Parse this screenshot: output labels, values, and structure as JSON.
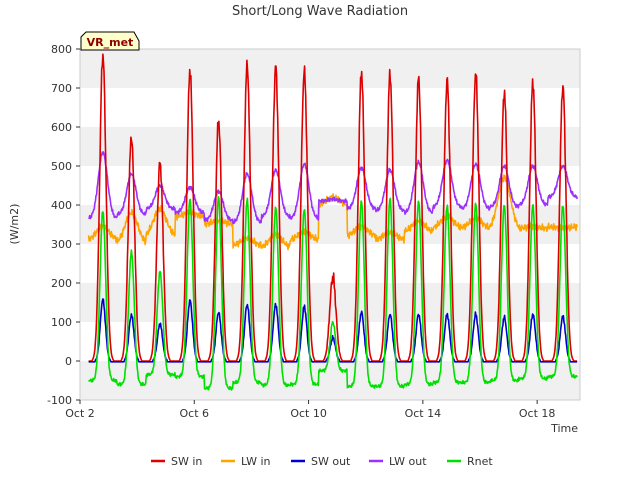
{
  "chart_data": {
    "type": "line",
    "title": "Short/Long Wave Radiation",
    "xlabel": "Time",
    "ylabel": "(W/m2)",
    "badge": "VR_met",
    "xlim": [
      2,
      19.5
    ],
    "ylim": [
      -100,
      800
    ],
    "x_ticks": [
      {
        "value": 2,
        "label": "Oct 2"
      },
      {
        "value": 6,
        "label": "Oct 6"
      },
      {
        "value": 10,
        "label": "Oct 10"
      },
      {
        "value": 14,
        "label": "Oct 14"
      },
      {
        "value": 18,
        "label": "Oct 18"
      }
    ],
    "y_ticks": [
      -100,
      0,
      100,
      200,
      300,
      400,
      500,
      600,
      700,
      800
    ],
    "grid_bands": [
      [
        -100,
        0
      ],
      [
        100,
        200
      ],
      [
        300,
        400
      ],
      [
        500,
        600
      ],
      [
        700,
        800
      ]
    ],
    "colors": {
      "SW in": "#dd0000",
      "LW in": "#ffa500",
      "SW out": "#0000cc",
      "LW out": "#9b30ff",
      "Rnet": "#00e000"
    },
    "peaks": {
      "days": [
        2.8,
        3.8,
        4.8,
        5.85,
        6.85,
        7.85,
        8.85,
        9.85,
        10.85,
        11.85,
        12.85,
        13.85,
        14.85,
        15.85,
        16.85,
        17.85,
        18.9
      ],
      "SW in": [
        785,
        575,
        510,
        745,
        615,
        760,
        755,
        745,
        215,
        740,
        735,
        725,
        720,
        740,
        690,
        715,
        705
      ],
      "SW out": [
        158,
        118,
        95,
        155,
        125,
        145,
        145,
        140,
        60,
        125,
        120,
        120,
        120,
        120,
        112,
        120,
        115
      ],
      "Rnet": [
        385,
        280,
        230,
        415,
        420,
        415,
        395,
        390,
        100,
        410,
        415,
        410,
        400,
        405,
        400,
        400,
        400
      ],
      "LW out": [
        535,
        480,
        450,
        445,
        435,
        480,
        490,
        505,
        415,
        495,
        490,
        510,
        515,
        505,
        500,
        500,
        500
      ],
      "LW in": [
        345,
        380,
        390,
        380,
        360,
        315,
        325,
        330,
        420,
        345,
        330,
        360,
        370,
        365,
        470,
        345,
        340
      ]
    },
    "night_levels": {
      "SW in": 0,
      "SW out": -2,
      "Rnet": [
        -50,
        -60,
        -35,
        -40,
        -70,
        -55,
        -62,
        -60,
        -25,
        -65,
        -65,
        -60,
        -55,
        -55,
        -50,
        -45,
        -40
      ],
      "LW out": [
        365,
        375,
        390,
        380,
        360,
        355,
        370,
        365,
        410,
        390,
        385,
        380,
        395,
        390,
        395,
        400,
        420
      ],
      "LW in": [
        310,
        300,
        320,
        370,
        350,
        295,
        290,
        310,
        400,
        320,
        310,
        330,
        340,
        340,
        335,
        340,
        345
      ]
    },
    "series": [
      {
        "name": "SW in"
      },
      {
        "name": "LW in"
      },
      {
        "name": "SW out"
      },
      {
        "name": "LW out"
      },
      {
        "name": "Rnet"
      }
    ],
    "legend_position": "bottom"
  }
}
